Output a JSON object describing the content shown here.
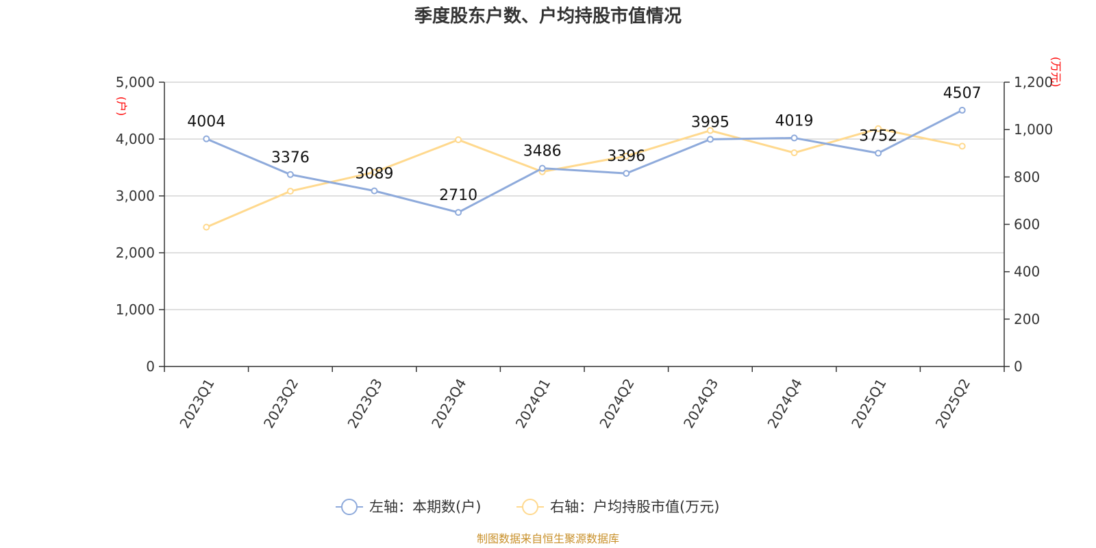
{
  "chart_data": {
    "type": "line",
    "title": "季度股东户数、户均持股市值情况",
    "categories": [
      "2023Q1",
      "2023Q2",
      "2023Q3",
      "2023Q4",
      "2024Q1",
      "2024Q2",
      "2024Q3",
      "2024Q4",
      "2025Q1",
      "2025Q2"
    ],
    "series": [
      {
        "name": "左轴：本期数(户)",
        "axis": "left",
        "color": "#8eaadb",
        "values": [
          4004,
          3376,
          3089,
          2710,
          3486,
          3396,
          3995,
          4019,
          3752,
          4507
        ],
        "data_labels": [
          "4004",
          "3376",
          "3089",
          "2710",
          "3486",
          "3396",
          "3995",
          "4019",
          "3752",
          "4507"
        ]
      },
      {
        "name": "右轴：户均持股市值(万元)",
        "axis": "right",
        "color": "#ffd98e",
        "values": [
          588,
          740,
          820,
          957,
          822,
          888,
          996,
          902,
          1004,
          930
        ]
      }
    ],
    "left_axis": {
      "unit": "(户)",
      "ylim": [
        0,
        5000
      ],
      "ticks": [
        "0",
        "1,000",
        "2,000",
        "3,000",
        "4,000",
        "5,000"
      ],
      "tick_values": [
        0,
        1000,
        2000,
        3000,
        4000,
        5000
      ]
    },
    "right_axis": {
      "unit": "(万元)",
      "ylim": [
        0,
        1200
      ],
      "ticks": [
        "0",
        "200",
        "400",
        "600",
        "800",
        "1,000",
        "1,200"
      ],
      "tick_values": [
        0,
        200,
        400,
        600,
        800,
        1000,
        1200
      ]
    },
    "grid": true,
    "legend_position": "bottom",
    "source": "制图数据来自恒生聚源数据库"
  }
}
